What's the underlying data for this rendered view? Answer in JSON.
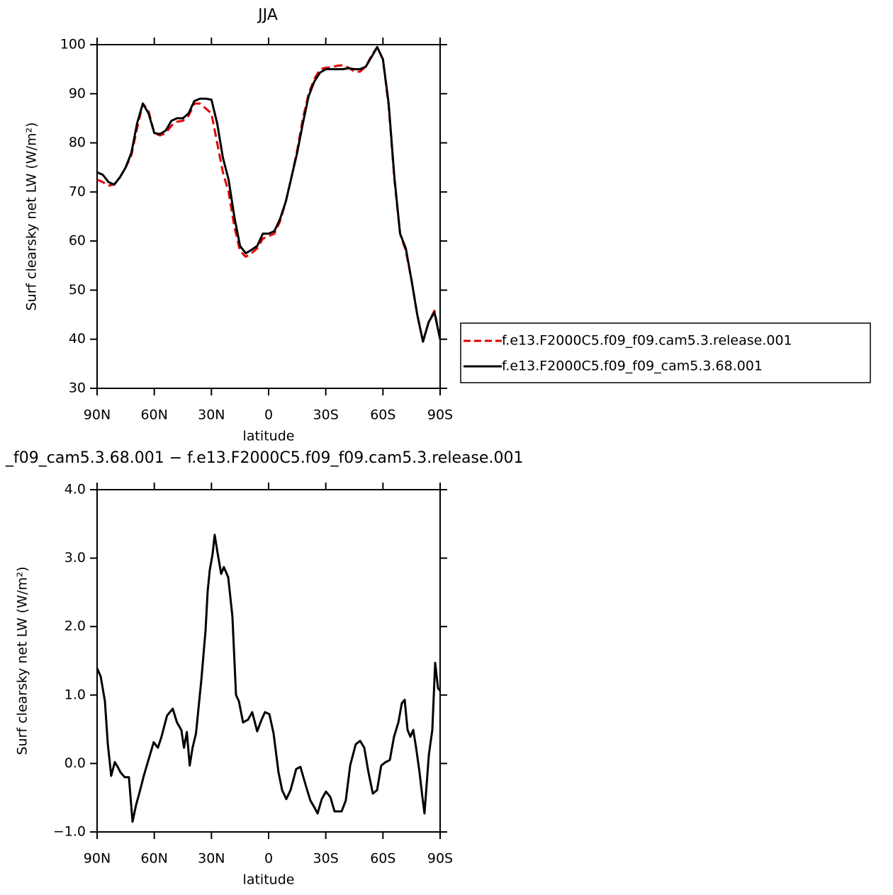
{
  "chart_data": [
    {
      "type": "line",
      "title": "JJA",
      "xlabel": "latitude",
      "ylabel": "Surf clearsky net LW (W/m²)",
      "xlim": [
        90,
        -90
      ],
      "xticks": [
        {
          "value": 90,
          "label": "90N"
        },
        {
          "value": 60,
          "label": "60N"
        },
        {
          "value": 30,
          "label": "30N"
        },
        0,
        {
          "value": -30,
          "label": "30S"
        },
        {
          "value": -60,
          "label": "60S"
        },
        {
          "value": -90,
          "label": "90S"
        }
      ],
      "ylim": [
        30,
        100
      ],
      "yticks": [
        30,
        40,
        50,
        60,
        70,
        80,
        90,
        100
      ],
      "legend": "right",
      "x": [
        90,
        87,
        84,
        81,
        78,
        75,
        72,
        69,
        66,
        63,
        60,
        57,
        54,
        51,
        48,
        45,
        42,
        39,
        36,
        33,
        30,
        27,
        24,
        21,
        18,
        15,
        12,
        9,
        6,
        3,
        0,
        -3,
        -6,
        -9,
        -12,
        -15,
        -18,
        -21,
        -24,
        -27,
        -30,
        -33,
        -36,
        -39,
        -42,
        -45,
        -48,
        -51,
        -54,
        -57,
        -60,
        -63,
        -66,
        -69,
        -72,
        -75,
        -78,
        -81,
        -84,
        -87,
        -90
      ],
      "series": [
        {
          "name": "f.e13.F2000C5.f09_f09.cam5.3.release.001",
          "color": "#e00000",
          "dash": true,
          "values": [
            72.5,
            72,
            71.3,
            71.5,
            73,
            75,
            77.5,
            83,
            88,
            86.5,
            82,
            81.5,
            82,
            83.5,
            84.3,
            84.5,
            85.5,
            88,
            88,
            87,
            86,
            80,
            74,
            70,
            63,
            58,
            56.8,
            57.5,
            58.5,
            60.5,
            61,
            61.5,
            64,
            68,
            73,
            78.5,
            85,
            90,
            93,
            95,
            95.3,
            95.4,
            95.7,
            95.8,
            95.3,
            94.5,
            94.5,
            95.5,
            97.8,
            99.5,
            97,
            87.5,
            72.5,
            61.5,
            58,
            52,
            45,
            39.6,
            43.5,
            45.8,
            40
          ]
        },
        {
          "name": "f.e13.F2000C5.f09_f09_cam5.3.68.001",
          "color": "#000000",
          "dash": false,
          "values": [
            74,
            73.5,
            72,
            71.5,
            73,
            75,
            78,
            84,
            88,
            86,
            82,
            81.8,
            82.5,
            84.5,
            85,
            85,
            86,
            88.5,
            89,
            89,
            88.8,
            84,
            77,
            72.5,
            65,
            59,
            57.5,
            58.2,
            59,
            61.5,
            61.5,
            62,
            64.5,
            68,
            73,
            78,
            84,
            89.5,
            92.5,
            94.3,
            95,
            95,
            95,
            95,
            95.2,
            95,
            95,
            95.5,
            97.5,
            99.5,
            97,
            88,
            73,
            61.5,
            58.5,
            52,
            45,
            39.5,
            43.5,
            45.5,
            40
          ]
        }
      ]
    },
    {
      "type": "line",
      "title": "_f09_cam5.3.68.001 − f.e13.F2000C5.f09_f09.cam5.3.release.001",
      "xlabel": "latitude",
      "ylabel": "Surf clearsky net LW (W/m²)",
      "xlim": [
        90,
        -90
      ],
      "xticks": [
        {
          "value": 90,
          "label": "90N"
        },
        {
          "value": 60,
          "label": "60N"
        },
        {
          "value": 30,
          "label": "30N"
        },
        0,
        {
          "value": -30,
          "label": "30S"
        },
        {
          "value": -60,
          "label": "60S"
        },
        {
          "value": -90,
          "label": "90S"
        }
      ],
      "ylim": [
        -1,
        4
      ],
      "yticks": [
        {
          "value": -1,
          "label": "−1.0"
        },
        {
          "value": 0,
          "label": "0.0"
        },
        {
          "value": 1,
          "label": "1.0"
        },
        {
          "value": 2,
          "label": "2.0"
        },
        {
          "value": 3,
          "label": "3.0"
        },
        {
          "value": 4,
          "label": "4.0"
        }
      ],
      "x": [
        90,
        88.1,
        85.9,
        84.4,
        82.6,
        80.7,
        79.2,
        77.7,
        75.5,
        73.3,
        71.4,
        69.5,
        67.7,
        65.5,
        63.6,
        60.3,
        58.1,
        56.2,
        53.3,
        50.3,
        48.1,
        45.8,
        44.4,
        42.9,
        41.4,
        39.9,
        38.1,
        35.3,
        33.1,
        32.0,
        30.9,
        29.4,
        28.3,
        26.8,
        24.9,
        23.5,
        21.2,
        19.0,
        17.1,
        15.6,
        13.4,
        10.8,
        8.6,
        6.0,
        3.7,
        1.9,
        -0.4,
        -2.6,
        -5.2,
        -7.1,
        -9.3,
        -11.5,
        -14.5,
        -16.7,
        -19.7,
        -21.9,
        -24.2,
        -25.7,
        -27.9,
        -30.1,
        -32.4,
        -34.6,
        -38.3,
        -40.5,
        -42.8,
        -45.7,
        -48.0,
        -50.2,
        -52.4,
        -54.7,
        -56.9,
        -59.1,
        -61.4,
        -63.6,
        -65.8,
        -68.1,
        -69.9,
        -71.4,
        -72.9,
        -74.4,
        -75.9,
        -77.4,
        -79.2,
        -80.7,
        -81.8,
        -84.1,
        -85.9,
        -87.4,
        -88.9,
        -90
      ],
      "color": "#000000",
      "values": [
        1.39,
        1.27,
        0.91,
        0.29,
        -0.18,
        0.02,
        -0.05,
        -0.13,
        -0.2,
        -0.2,
        -0.85,
        -0.6,
        -0.42,
        -0.18,
        0.0,
        0.31,
        0.23,
        0.39,
        0.7,
        0.8,
        0.6,
        0.49,
        0.23,
        0.46,
        -0.03,
        0.23,
        0.44,
        1.22,
        1.94,
        2.51,
        2.82,
        3.06,
        3.34,
        3.08,
        2.77,
        2.87,
        2.72,
        2.15,
        1.0,
        0.91,
        0.6,
        0.64,
        0.75,
        0.47,
        0.64,
        0.75,
        0.72,
        0.44,
        -0.13,
        -0.39,
        -0.52,
        -0.39,
        -0.08,
        -0.05,
        -0.34,
        -0.54,
        -0.65,
        -0.73,
        -0.52,
        -0.41,
        -0.49,
        -0.7,
        -0.7,
        -0.54,
        -0.03,
        0.28,
        0.33,
        0.23,
        -0.13,
        -0.44,
        -0.39,
        -0.03,
        0.02,
        0.05,
        0.39,
        0.6,
        0.88,
        0.93,
        0.49,
        0.39,
        0.49,
        0.23,
        -0.13,
        -0.49,
        -0.73,
        0.13,
        0.49,
        1.47,
        1.1,
        1.06
      ]
    }
  ]
}
